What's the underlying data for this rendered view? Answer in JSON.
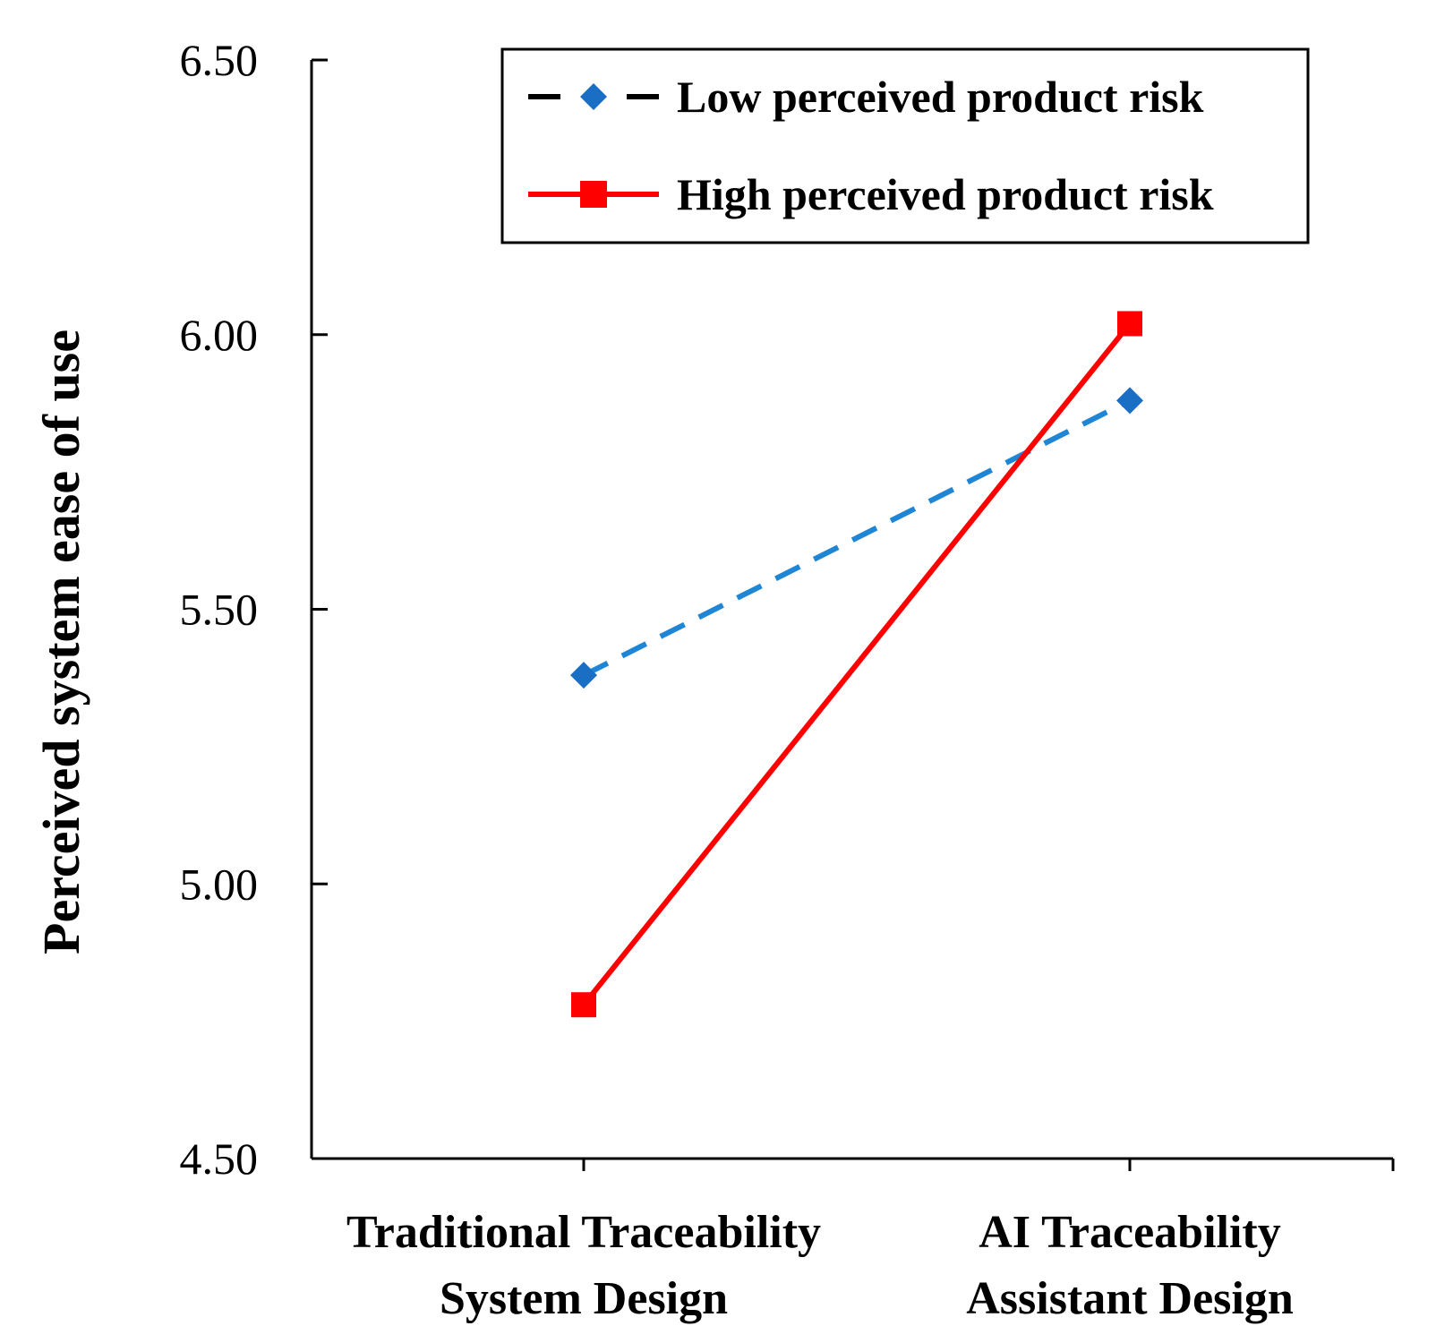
{
  "chart_data": {
    "type": "line",
    "categories": [
      [
        "Traditional Traceability",
        "System Design"
      ],
      [
        "AI Traceability",
        "Assistant Design"
      ]
    ],
    "ylabel": "Perceived system ease of use",
    "xlabel": "",
    "ylim": [
      4.5,
      6.5
    ],
    "yticks": [
      "4.50",
      "5.00",
      "5.50",
      "6.00",
      "6.50"
    ],
    "grid": false,
    "legend_position": "top-right",
    "series": [
      {
        "name": "Low perceived product risk",
        "values": [
          5.38,
          5.88
        ],
        "line_color": "#1f86d6",
        "marker_color": "#1a6fc4",
        "line_style": "dashed",
        "marker": "diamond"
      },
      {
        "name": "High perceived product risk",
        "values": [
          4.78,
          6.02
        ],
        "line_color": "#ff0000",
        "marker_color": "#ff0000",
        "line_style": "solid",
        "marker": "square"
      }
    ]
  }
}
